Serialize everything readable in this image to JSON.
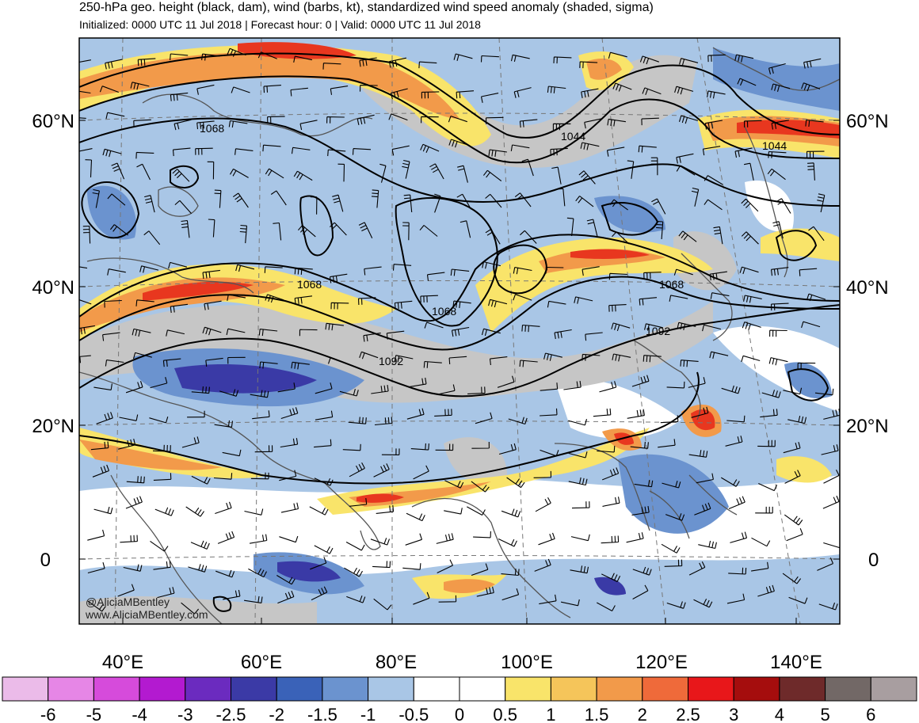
{
  "header": {
    "title": "250-hPa geo. height (black, dam), wind (barbs, kt), standardized wind speed anomaly (shaded, sigma)",
    "subtitle": "Initialized: 0000 UTC 11 Jul 2018 | Forecast hour: 0 | Valid: 0000 UTC 11 Jul 2018"
  },
  "map": {
    "lat_labels": [
      "60°N",
      "40°N",
      "20°N",
      "0"
    ],
    "lon_labels": [
      "40°E",
      "60°E",
      "80°E",
      "100°E",
      "120°E",
      "140°E"
    ],
    "contour_labels": [
      "1068",
      "1068",
      "1068",
      "1068",
      "1092",
      "1092",
      "1044",
      "1044"
    ],
    "credit_handle": "@AliciaMBentley",
    "credit_site": "www.AliciaMBentley.com",
    "colors": {
      "neg_light": "#a9c6e6",
      "neg_mid": "#6b93cf",
      "neg_dark": "#3a62b8",
      "neg_deep": "#3a3aa6",
      "pos_yellow": "#f9e46a",
      "pos_orange": "#f29a4a",
      "pos_red": "#e8371f",
      "pos_darkred": "#b5121b",
      "grey": "#c6c6c6"
    }
  },
  "colorbar": {
    "labels": [
      "-6",
      "-5",
      "-4",
      "-3",
      "-2.5",
      "-2",
      "-1.5",
      "-1",
      "-0.5",
      "0",
      "0.5",
      "1",
      "1.5",
      "2",
      "2.5",
      "3",
      "4",
      "5",
      "6"
    ],
    "colors": [
      "#ebbbe9",
      "#e686e6",
      "#d64bdb",
      "#b31ad0",
      "#6b2bbf",
      "#3b3aa6",
      "#3a62b8",
      "#6b93cf",
      "#a9c6e6",
      "#ffffff",
      "#ffffff",
      "#f9e46a",
      "#f5c55a",
      "#f29a4a",
      "#ef6a3a",
      "#e8171a",
      "#a50d0d",
      "#6e2a2a",
      "#726866",
      "#a89ea0"
    ]
  }
}
